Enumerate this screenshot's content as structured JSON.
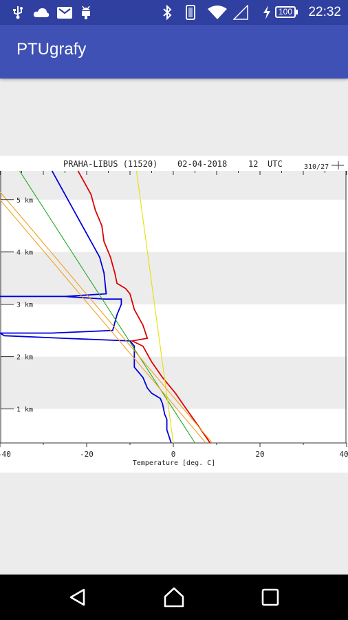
{
  "status_bar": {
    "time": "22:32",
    "battery_level": "100",
    "icons": [
      "usb-icon",
      "cloud-icon",
      "gmail-icon",
      "android-debug-icon",
      "bluetooth-icon",
      "vibrate-icon",
      "wifi-icon",
      "signal-icon",
      "charging-icon",
      "battery-icon"
    ]
  },
  "app_bar": {
    "title": "PTUgrafy"
  },
  "chart": {
    "station_title": "PRAHA-LIBUS (11520)",
    "date": "02-04-2018",
    "hour": "12",
    "utc": "UTC",
    "wind_label": "310/27",
    "xlabel": "Temperature [deg. C]",
    "height_labels": [
      "1 km",
      "2 km",
      "3 km",
      "4 km",
      "5 km"
    ],
    "x_tick_labels": [
      "-40",
      "-20",
      "0",
      "20",
      "40"
    ]
  },
  "chart_data": {
    "type": "line",
    "title": "PRAHA-LIBUS (11520) 02-04-2018 12 UTC",
    "xlabel": "Temperature [deg. C]",
    "ylabel": "",
    "xlim": [
      -40,
      40
    ],
    "ylim": [
      0.35,
      5.55
    ],
    "y_unit": "km",
    "background_bands": "alternating white / light gray per km",
    "series": [
      {
        "color": "#dd0000",
        "points": [
          [
            8.5,
            0.35
          ],
          [
            6,
            0.65
          ],
          [
            3,
            1.0
          ],
          [
            0.5,
            1.3
          ],
          [
            -2.5,
            1.6
          ],
          [
            -5,
            1.9
          ],
          [
            -7,
            2.2
          ],
          [
            -9.5,
            2.3
          ],
          [
            -6,
            2.35
          ],
          [
            -7,
            2.6
          ],
          [
            -9,
            2.9
          ],
          [
            -10,
            3.2
          ],
          [
            -11,
            3.3
          ],
          [
            -13,
            3.4
          ],
          [
            -13.5,
            3.6
          ],
          [
            -14.5,
            3.9
          ],
          [
            -16,
            4.2
          ],
          [
            -16.5,
            4.5
          ],
          [
            -18,
            4.8
          ],
          [
            -19,
            5.1
          ],
          [
            -21,
            5.4
          ],
          [
            -22,
            5.55
          ]
        ]
      },
      {
        "color": "#0000dd",
        "points": [
          [
            -0.5,
            0.35
          ],
          [
            -1.5,
            0.6
          ],
          [
            -1.5,
            0.8
          ],
          [
            -2,
            0.9
          ],
          [
            -2.5,
            1.1
          ],
          [
            -3,
            1.2
          ],
          [
            -4,
            1.25
          ],
          [
            -5,
            1.3
          ],
          [
            -6,
            1.4
          ],
          [
            -7,
            1.6
          ],
          [
            -9,
            1.8
          ],
          [
            -9,
            2.0
          ],
          [
            -9,
            2.2
          ],
          [
            -10,
            2.3
          ],
          [
            -25,
            2.35
          ],
          [
            -39,
            2.4
          ],
          [
            -40,
            2.45
          ],
          [
            -28,
            2.45
          ],
          [
            -14,
            2.5
          ],
          [
            -13,
            2.8
          ],
          [
            -12,
            3.0
          ],
          [
            -12,
            3.1
          ],
          [
            -16,
            3.1
          ],
          [
            -25,
            3.15
          ],
          [
            -40,
            3.15
          ],
          [
            -25,
            3.15
          ],
          [
            -15.5,
            3.2
          ],
          [
            -16,
            3.6
          ],
          [
            -17,
            3.9
          ],
          [
            -19,
            4.2
          ],
          [
            -21,
            4.5
          ],
          [
            -23,
            4.8
          ],
          [
            -25,
            5.1
          ],
          [
            -27,
            5.4
          ],
          [
            -28,
            5.55
          ]
        ]
      },
      {
        "color": "#22aa22",
        "points": [
          [
            5,
            0.35
          ],
          [
            -35.5,
            5.55
          ]
        ]
      },
      {
        "color": "#e8e000",
        "points": [
          [
            0,
            0.35
          ],
          [
            -8.5,
            5.55
          ]
        ]
      },
      {
        "color": "#f0a020",
        "points": [
          [
            7.5,
            0.35
          ],
          [
            -40,
            5.0
          ]
        ]
      },
      {
        "color": "#f0a020",
        "points": [
          [
            9,
            0.35
          ],
          [
            -40,
            5.15
          ]
        ]
      }
    ]
  }
}
